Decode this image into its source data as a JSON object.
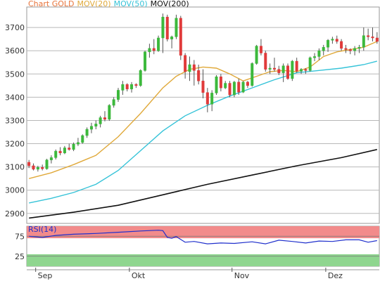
{
  "chart_data": [
    {
      "type": "candlestick",
      "legend": [
        {
          "text": "Chart GOLD",
          "color": "#e8743b"
        },
        {
          "text": "MOV(20)",
          "color": "#e0a93a"
        },
        {
          "text": "MOV(50)",
          "color": "#35c3d8"
        },
        {
          "text": "MOV(200)",
          "color": "#111111"
        }
      ],
      "y_ticks": [
        2900,
        3000,
        3100,
        3200,
        3300,
        3400,
        3500,
        3600,
        3700
      ],
      "y_tick_labels": [
        "2900",
        "3000",
        "3100",
        "3200",
        "3300",
        "3400",
        "3500",
        "3600",
        "3700"
      ],
      "ylim": [
        2857,
        3788
      ],
      "x_month_labels": [
        {
          "label": "Sep",
          "index": 2
        },
        {
          "label": "Okt",
          "index": 23
        },
        {
          "label": "Nov",
          "index": 46
        },
        {
          "label": "Dez",
          "index": 67
        }
      ],
      "n_periods": 79,
      "candles": [
        [
          3120,
          3130,
          3095,
          3105
        ],
        [
          3105,
          3115,
          3085,
          3090
        ],
        [
          3090,
          3105,
          3080,
          3098
        ],
        [
          3098,
          3110,
          3085,
          3092
        ],
        [
          3092,
          3135,
          3088,
          3130
        ],
        [
          3130,
          3150,
          3115,
          3140
        ],
        [
          3140,
          3175,
          3132,
          3168
        ],
        [
          3168,
          3185,
          3150,
          3160
        ],
        [
          3160,
          3190,
          3155,
          3182
        ],
        [
          3182,
          3200,
          3170,
          3175
        ],
        [
          3175,
          3205,
          3168,
          3198
        ],
        [
          3198,
          3225,
          3190,
          3205
        ],
        [
          3205,
          3240,
          3200,
          3235
        ],
        [
          3235,
          3270,
          3225,
          3262
        ],
        [
          3262,
          3290,
          3245,
          3275
        ],
        [
          3275,
          3300,
          3262,
          3285
        ],
        [
          3285,
          3320,
          3270,
          3312
        ],
        [
          3312,
          3340,
          3296,
          3305
        ],
        [
          3305,
          3370,
          3298,
          3365
        ],
        [
          3365,
          3400,
          3355,
          3390
        ],
        [
          3390,
          3440,
          3380,
          3430
        ],
        [
          3430,
          3470,
          3410,
          3455
        ],
        [
          3455,
          3460,
          3425,
          3435
        ],
        [
          3435,
          3465,
          3420,
          3455
        ],
        [
          3455,
          3460,
          3440,
          3450
        ],
        [
          3450,
          3520,
          3445,
          3515
        ],
        [
          3515,
          3600,
          3510,
          3595
        ],
        [
          3595,
          3630,
          3570,
          3610
        ],
        [
          3610,
          3650,
          3585,
          3600
        ],
        [
          3600,
          3665,
          3595,
          3655
        ],
        [
          3655,
          3760,
          3590,
          3745
        ],
        [
          3745,
          3755,
          3640,
          3650
        ],
        [
          3650,
          3665,
          3610,
          3660
        ],
        [
          3660,
          3755,
          3650,
          3740
        ],
        [
          3740,
          3750,
          3560,
          3580
        ],
        [
          3580,
          3590,
          3480,
          3510
        ],
        [
          3510,
          3575,
          3470,
          3540
        ],
        [
          3540,
          3560,
          3450,
          3515
        ],
        [
          3515,
          3540,
          3455,
          3470
        ],
        [
          3470,
          3520,
          3395,
          3420
        ],
        [
          3420,
          3440,
          3335,
          3370
        ],
        [
          3370,
          3430,
          3340,
          3418
        ],
        [
          3418,
          3495,
          3410,
          3488
        ],
        [
          3488,
          3500,
          3425,
          3440
        ],
        [
          3440,
          3470,
          3435,
          3460
        ],
        [
          3460,
          3470,
          3400,
          3410
        ],
        [
          3410,
          3470,
          3400,
          3465
        ],
        [
          3465,
          3480,
          3410,
          3422
        ],
        [
          3422,
          3470,
          3418,
          3465
        ],
        [
          3465,
          3470,
          3440,
          3450
        ],
        [
          3450,
          3550,
          3445,
          3545
        ],
        [
          3545,
          3625,
          3540,
          3620
        ],
        [
          3620,
          3650,
          3580,
          3590
        ],
        [
          3590,
          3600,
          3510,
          3520
        ],
        [
          3520,
          3545,
          3500,
          3525
        ],
        [
          3525,
          3570,
          3510,
          3520
        ],
        [
          3520,
          3535,
          3495,
          3505
        ],
        [
          3505,
          3545,
          3465,
          3535
        ],
        [
          3535,
          3545,
          3475,
          3480
        ],
        [
          3480,
          3560,
          3470,
          3555
        ],
        [
          3555,
          3570,
          3505,
          3512
        ],
        [
          3512,
          3525,
          3500,
          3520
        ],
        [
          3520,
          3525,
          3500,
          3515
        ],
        [
          3515,
          3575,
          3510,
          3570
        ],
        [
          3570,
          3590,
          3555,
          3575
        ],
        [
          3575,
          3610,
          3560,
          3600
        ],
        [
          3600,
          3625,
          3580,
          3615
        ],
        [
          3615,
          3650,
          3595,
          3645
        ],
        [
          3645,
          3660,
          3630,
          3650
        ],
        [
          3650,
          3665,
          3630,
          3640
        ],
        [
          3640,
          3650,
          3600,
          3610
        ],
        [
          3610,
          3625,
          3590,
          3605
        ],
        [
          3605,
          3610,
          3585,
          3600
        ],
        [
          3600,
          3620,
          3580,
          3610
        ],
        [
          3610,
          3625,
          3590,
          3615
        ],
        [
          3615,
          3700,
          3600,
          3665
        ],
        [
          3665,
          3695,
          3645,
          3660
        ],
        [
          3660,
          3700,
          3640,
          3655
        ],
        [
          3655,
          3680,
          3630,
          3640
        ]
      ],
      "mov20": [
        [
          0,
          3050
        ],
        [
          5,
          3075
        ],
        [
          10,
          3110
        ],
        [
          15,
          3150
        ],
        [
          20,
          3230
        ],
        [
          25,
          3330
        ],
        [
          30,
          3440
        ],
        [
          33,
          3490
        ],
        [
          36,
          3520
        ],
        [
          39,
          3530
        ],
        [
          42,
          3525
        ],
        [
          45,
          3500
        ],
        [
          48,
          3470
        ],
        [
          51,
          3490
        ],
        [
          54,
          3510
        ],
        [
          57,
          3515
        ],
        [
          60,
          3510
        ],
        [
          63,
          3530
        ],
        [
          66,
          3575
        ],
        [
          69,
          3595
        ],
        [
          72,
          3605
        ],
        [
          75,
          3615
        ],
        [
          78,
          3640
        ]
      ],
      "mov50": [
        [
          0,
          2945
        ],
        [
          5,
          2965
        ],
        [
          10,
          2990
        ],
        [
          15,
          3025
        ],
        [
          20,
          3085
        ],
        [
          25,
          3170
        ],
        [
          30,
          3255
        ],
        [
          35,
          3320
        ],
        [
          40,
          3365
        ],
        [
          45,
          3405
        ],
        [
          50,
          3440
        ],
        [
          55,
          3475
        ],
        [
          60,
          3505
        ],
        [
          65,
          3515
        ],
        [
          70,
          3525
        ],
        [
          75,
          3540
        ],
        [
          78,
          3555
        ]
      ],
      "mov200": [
        [
          0,
          2880
        ],
        [
          10,
          2905
        ],
        [
          20,
          2935
        ],
        [
          30,
          2980
        ],
        [
          40,
          3025
        ],
        [
          50,
          3065
        ],
        [
          60,
          3105
        ],
        [
          70,
          3140
        ],
        [
          78,
          3175
        ]
      ]
    },
    {
      "type": "line",
      "legend": [
        {
          "text": "RSI(14)",
          "color": "#1f2fcc"
        }
      ],
      "y_ticks": [
        25,
        75
      ],
      "y_tick_labels": [
        "25",
        "75"
      ],
      "ylim": [
        0,
        100
      ],
      "bands": [
        {
          "from": 70,
          "to": 100,
          "color": "#f28b8b"
        },
        {
          "from": 0,
          "to": 30,
          "color": "#8fd68f"
        }
      ],
      "values": [
        [
          0,
          75
        ],
        [
          3,
          72
        ],
        [
          6,
          77
        ],
        [
          10,
          80
        ],
        [
          15,
          82
        ],
        [
          20,
          85
        ],
        [
          25,
          88
        ],
        [
          29,
          90
        ],
        [
          30,
          89
        ],
        [
          31,
          72
        ],
        [
          32,
          70
        ],
        [
          33,
          74
        ],
        [
          35,
          60
        ],
        [
          37,
          62
        ],
        [
          40,
          56
        ],
        [
          43,
          58
        ],
        [
          46,
          57
        ],
        [
          50,
          61
        ],
        [
          53,
          56
        ],
        [
          56,
          65
        ],
        [
          59,
          62
        ],
        [
          62,
          58
        ],
        [
          65,
          63
        ],
        [
          68,
          62
        ],
        [
          71,
          66
        ],
        [
          74,
          66
        ],
        [
          76,
          60
        ],
        [
          78,
          64
        ]
      ]
    }
  ]
}
